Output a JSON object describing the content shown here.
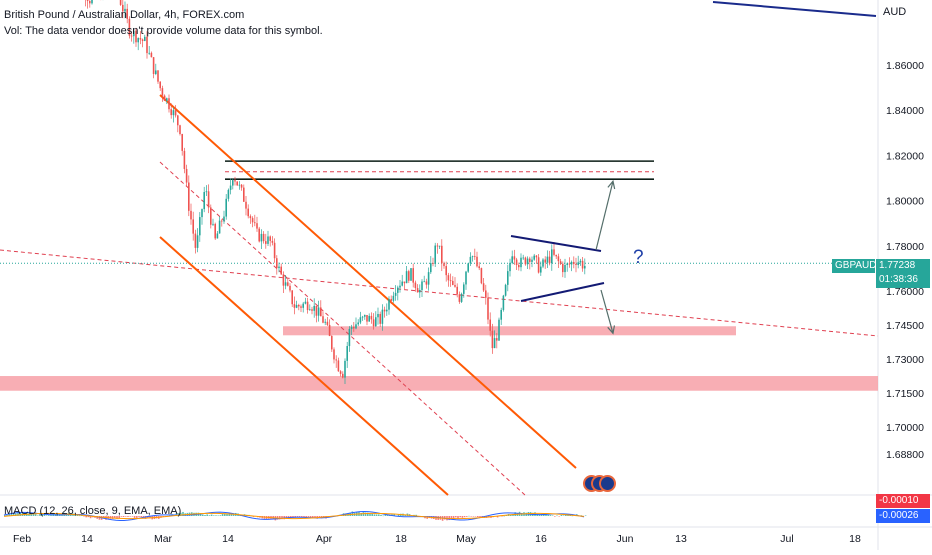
{
  "header": {
    "title": "British Pound / Australian Dollar, 4h, FOREX.com",
    "volume_note": "Vol: The data vendor doesn't provide volume data for this symbol."
  },
  "currency": "AUD",
  "ticker_tag": {
    "symbol": "GBPAUD",
    "price": "1.77238",
    "countdown": "01:38:36",
    "color": "#26a69a"
  },
  "annotation": "?",
  "macd": {
    "label": "MACD (12, 26, close, 9, EMA, EMA)",
    "signal_tag": "-0.00010",
    "macd_tag": "-0.00026",
    "signal_color": "#f23645",
    "macd_color": "#2962ff"
  },
  "colors": {
    "up": "#26a69a",
    "down": "#ef5350",
    "channel": "#ff5a05",
    "zone": "#f7a0a7",
    "resistance": "#0b1d16",
    "triangle": "#131a74",
    "arrow": "#546e6a"
  },
  "chart_data": {
    "type": "candlestick",
    "symbol": "GBPAUD",
    "interval": "4h",
    "y_ticks": [
      "1.86000",
      "1.84000",
      "1.82000",
      "1.80000",
      "1.78000",
      "1.76000",
      "1.74500",
      "1.73000",
      "1.71500",
      "1.70000",
      "1.68800"
    ],
    "x_ticks": [
      "Feb",
      "14",
      "Mar",
      "14",
      "Apr",
      "18",
      "May",
      "16",
      "Jun",
      "13",
      "Jul",
      "18"
    ],
    "ylim": [
      1.681,
      1.8906
    ],
    "last_price": 1.77238,
    "trend_start": 1.875,
    "trend_end": 1.77,
    "horizontal_levels": {
      "resistance": [
        1.8175,
        1.8095
      ],
      "resistance_dashed": 1.8128,
      "support_zones": [
        [
          1.7405,
          1.7445
        ],
        [
          1.716,
          1.7225
        ]
      ]
    },
    "triangle_apex_target": 1.8095,
    "triangle_breakdown_target": 1.7405
  }
}
